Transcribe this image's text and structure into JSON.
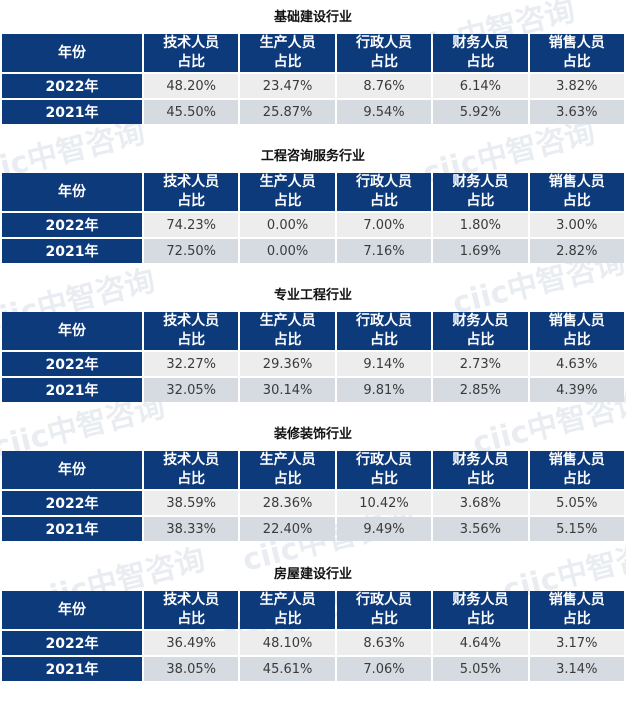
{
  "columns": {
    "year": "年份",
    "tech": [
      "技术人员",
      "占比"
    ],
    "prod": [
      "生产人员",
      "占比"
    ],
    "admin": [
      "行政人员",
      "占比"
    ],
    "fin": [
      "财务人员",
      "占比"
    ],
    "sales": [
      "销售人员",
      "占比"
    ]
  },
  "watermark": "ciic中智咨询",
  "sections": [
    {
      "title": "基础建设行业",
      "rows": [
        {
          "year": "2022年",
          "values": [
            "48.20%",
            "23.47%",
            "8.76%",
            "6.14%",
            "3.82%"
          ]
        },
        {
          "year": "2021年",
          "values": [
            "45.50%",
            "25.87%",
            "9.54%",
            "5.92%",
            "3.63%"
          ]
        }
      ]
    },
    {
      "title": "工程咨询服务行业",
      "rows": [
        {
          "year": "2022年",
          "values": [
            "74.23%",
            "0.00%",
            "7.00%",
            "1.80%",
            "3.00%"
          ]
        },
        {
          "year": "2021年",
          "values": [
            "72.50%",
            "0.00%",
            "7.16%",
            "1.69%",
            "2.82%"
          ]
        }
      ]
    },
    {
      "title": "专业工程行业",
      "rows": [
        {
          "year": "2022年",
          "values": [
            "32.27%",
            "29.36%",
            "9.14%",
            "2.73%",
            "4.63%"
          ]
        },
        {
          "year": "2021年",
          "values": [
            "32.05%",
            "30.14%",
            "9.81%",
            "2.85%",
            "4.39%"
          ]
        }
      ]
    },
    {
      "title": "装修装饰行业",
      "rows": [
        {
          "year": "2022年",
          "values": [
            "38.59%",
            "28.36%",
            "10.42%",
            "3.68%",
            "5.05%"
          ]
        },
        {
          "year": "2021年",
          "values": [
            "38.33%",
            "22.40%",
            "9.49%",
            "3.56%",
            "5.15%"
          ]
        }
      ]
    },
    {
      "title": "房屋建设行业",
      "rows": [
        {
          "year": "2022年",
          "values": [
            "36.49%",
            "48.10%",
            "8.63%",
            "4.64%",
            "3.17%"
          ]
        },
        {
          "year": "2021年",
          "values": [
            "38.05%",
            "45.61%",
            "7.06%",
            "5.05%",
            "3.14%"
          ]
        }
      ]
    }
  ]
}
